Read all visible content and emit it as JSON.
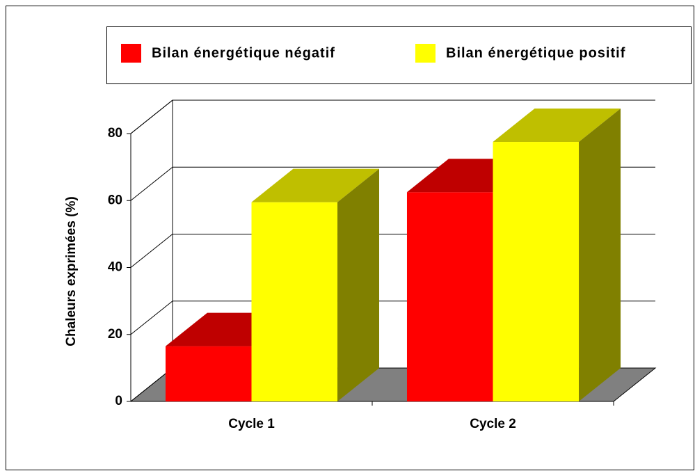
{
  "chart_data": {
    "type": "bar3d",
    "y_label": "Chaleurs exprimées (%)",
    "categories": [
      "Cycle 1",
      "Cycle 2"
    ],
    "series": [
      {
        "name": "Bilan énergétique négatif",
        "color": "#ff0000",
        "values": [
          16.5,
          62.5
        ]
      },
      {
        "name": "Bilan énergétique positif",
        "color": "#ffff00",
        "values": [
          59.5,
          77.5
        ]
      }
    ],
    "ylim": [
      0,
      80
    ],
    "yticks": [
      0,
      20,
      40,
      60,
      80
    ],
    "grid": true,
    "legend": "top"
  }
}
